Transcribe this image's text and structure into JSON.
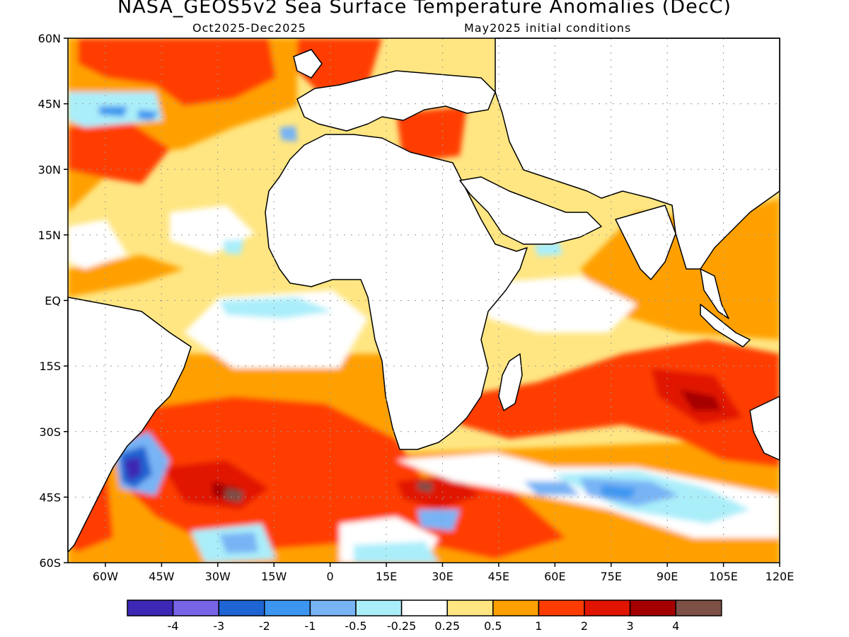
{
  "title": "NASA_GEOS5v2 Sea Surface Temperature Anomalies (DecC)",
  "period": "Oct2025-Dec2025",
  "init": "May2025 initial conditions",
  "lat_labels": [
    "60N",
    "45N",
    "30N",
    "15N",
    "EQ",
    "15S",
    "30S",
    "45S",
    "60S"
  ],
  "lon_labels": [
    "60W",
    "45W",
    "30W",
    "15W",
    "0",
    "15E",
    "30E",
    "45E",
    "60E",
    "75E",
    "90E",
    "105E",
    "120E"
  ],
  "colorbar": {
    "colors": [
      "#3c28b4",
      "#7864e6",
      "#1e64d2",
      "#3c96f0",
      "#78b4f5",
      "#aaeefa",
      "#ffffff",
      "#ffe682",
      "#ffa000",
      "#ff3c00",
      "#e11400",
      "#a50000",
      "#7d5046"
    ],
    "labels": [
      "-4",
      "-3",
      "-2",
      "-1",
      "-0.5",
      "-0.25",
      "0.25",
      "0.5",
      "1",
      "2",
      "3",
      "4"
    ]
  }
}
